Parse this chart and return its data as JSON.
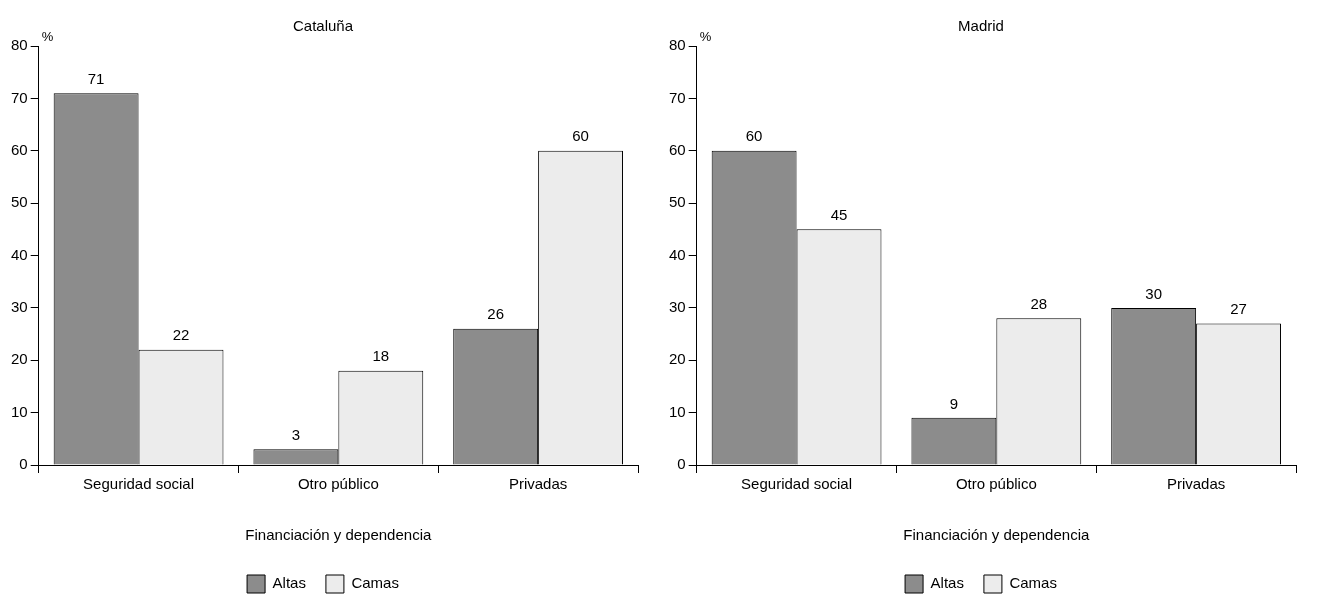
{
  "chart_data": [
    {
      "type": "bar",
      "title": "Cataluña",
      "ylabel": "%",
      "xlabel": "Financiación y dependencia",
      "categories": [
        "Seguridad social",
        "Otro público",
        "Privadas"
      ],
      "series": [
        {
          "name": "Altas",
          "color": "#8c8c8c",
          "values": [
            71,
            3,
            26
          ]
        },
        {
          "name": "Camas",
          "color": "#ececec",
          "values": [
            22,
            18,
            60
          ]
        }
      ],
      "ylim": [
        0,
        80
      ],
      "yticks": [
        0,
        10,
        20,
        30,
        40,
        50,
        60,
        70,
        80
      ],
      "grid": false,
      "legend": "bottom",
      "data_labels": true
    },
    {
      "type": "bar",
      "title": "Madrid",
      "ylabel": "%",
      "xlabel": "Financiación y dependencia",
      "categories": [
        "Seguridad social",
        "Otro público",
        "Privadas"
      ],
      "series": [
        {
          "name": "Altas",
          "color": "#8c8c8c",
          "values": [
            60,
            9,
            30
          ]
        },
        {
          "name": "Camas",
          "color": "#ececec",
          "values": [
            45,
            28,
            27
          ]
        }
      ],
      "ylim": [
        0,
        80
      ],
      "yticks": [
        0,
        10,
        20,
        30,
        40,
        50,
        60,
        70,
        80
      ],
      "grid": false,
      "legend": "bottom",
      "data_labels": true
    }
  ]
}
